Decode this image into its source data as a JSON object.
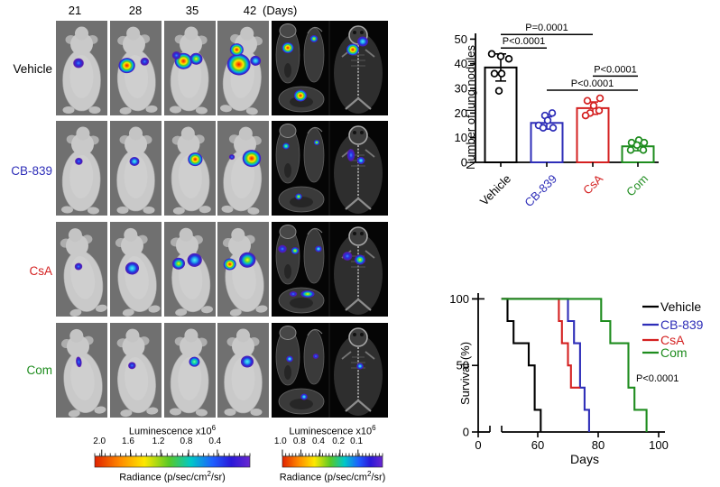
{
  "figure": {
    "bioluminescence_panel": {
      "day_labels": [
        "21",
        "28",
        "35",
        "42"
      ],
      "days_unit": "(Days)",
      "rows": [
        {
          "label": "Vehicle",
          "color": "#000000"
        },
        {
          "label": "CB-839",
          "color": "#2e2eb8"
        },
        {
          "label": "CsA",
          "color": "#d42020"
        },
        {
          "label": "Com",
          "color": "#1e8c1e"
        }
      ]
    },
    "scalebars": [
      {
        "title": "Luminescence",
        "exp_base": "x10",
        "exp_sup": "6",
        "ticks": [
          "2.0",
          "1.6",
          "1.2",
          "0.8",
          "0.4"
        ],
        "unit_pre": "Radiance (p/sec/cm",
        "unit_sup": "2",
        "unit_post": "/sr)"
      },
      {
        "title": "Luminescence",
        "exp_base": "x10",
        "exp_sup": "6",
        "ticks": [
          "1.0",
          "0.8",
          "0.4",
          "0.2",
          "0.1"
        ],
        "unit_pre": "Radiance (p/sec/cm",
        "unit_sup": "2",
        "unit_post": "/sr)"
      }
    ]
  },
  "chart_data": [
    {
      "type": "bar",
      "title": "",
      "xlabel": "",
      "ylabel": "Number of lung nodules",
      "ylim": [
        0,
        50
      ],
      "yticks": [
        0,
        10,
        20,
        30,
        40,
        50
      ],
      "categories": [
        "Vehicle",
        "CB-839",
        "CsA",
        "Com"
      ],
      "colors": [
        "#000000",
        "#2e2eb8",
        "#d42020",
        "#1e8c1e"
      ],
      "values": [
        38.5,
        16,
        22,
        6.5
      ],
      "errors": [
        5.5,
        2.5,
        2.5,
        1.8
      ],
      "points": [
        [
          44,
          43,
          42,
          36,
          36,
          29
        ],
        [
          20,
          19,
          17,
          15,
          14,
          14
        ],
        [
          26,
          25,
          23,
          21,
          20,
          19
        ],
        [
          9,
          8,
          8,
          7,
          5,
          5
        ]
      ],
      "significance": [
        {
          "label": "P=0.0001",
          "from": 0,
          "to": 2,
          "y": 51.9
        },
        {
          "label": "P<0.0001",
          "from": 0,
          "to": 1,
          "y": 46.4
        },
        {
          "label": "P<0.0001",
          "from": 2,
          "to": 3,
          "y": 35.0
        },
        {
          "label": "P<0.0001",
          "from": 1,
          "to": 3,
          "y": 29.3
        }
      ],
      "grid": false,
      "legend": "none"
    },
    {
      "type": "line",
      "subtype": "kaplan-meier-step",
      "title": "",
      "xlabel": "Days",
      "ylabel": "Survival (%)",
      "xlim": [
        0,
        100
      ],
      "ylim": [
        0,
        100
      ],
      "xticks": [
        0,
        60,
        80,
        100
      ],
      "yticks": [
        0,
        50,
        100
      ],
      "axis_break_x": {
        "after": 0,
        "resume_at": 48
      },
      "annotation": "P<0.0001",
      "legend_position": "right",
      "series": [
        {
          "name": "Vehicle",
          "color": "#000000",
          "points": [
            [
              48,
              100
            ],
            [
              50,
              100
            ],
            [
              50,
              83.3
            ],
            [
              52,
              83.3
            ],
            [
              52,
              66.7
            ],
            [
              57,
              66.7
            ],
            [
              57,
              50
            ],
            [
              59,
              50
            ],
            [
              59,
              16.7
            ],
            [
              61,
              16.7
            ],
            [
              61,
              0
            ]
          ]
        },
        {
          "name": "CB-839",
          "color": "#2e2eb8",
          "points": [
            [
              48,
              100
            ],
            [
              70,
              100
            ],
            [
              70,
              83.3
            ],
            [
              72,
              83.3
            ],
            [
              72,
              66.7
            ],
            [
              74,
              66.7
            ],
            [
              74,
              33.3
            ],
            [
              75.5,
              33.3
            ],
            [
              75.5,
              16.7
            ],
            [
              77,
              16.7
            ],
            [
              77,
              0
            ]
          ]
        },
        {
          "name": "CsA",
          "color": "#d42020",
          "points": [
            [
              48,
              100
            ],
            [
              67,
              100
            ],
            [
              67,
              83.3
            ],
            [
              68,
              83.3
            ],
            [
              68,
              66.7
            ],
            [
              70,
              66.7
            ],
            [
              70,
              50
            ],
            [
              71,
              50
            ],
            [
              71,
              33.3
            ],
            [
              74,
              33.3
            ]
          ]
        },
        {
          "name": "Com",
          "color": "#1e8c1e",
          "points": [
            [
              48,
              100
            ],
            [
              81,
              100
            ],
            [
              81,
              83.3
            ],
            [
              84,
              83.3
            ],
            [
              84,
              66.7
            ],
            [
              90,
              66.7
            ],
            [
              90,
              33.3
            ],
            [
              92,
              33.3
            ],
            [
              92,
              16.7
            ],
            [
              96,
              16.7
            ],
            [
              96,
              0
            ]
          ]
        }
      ]
    }
  ]
}
